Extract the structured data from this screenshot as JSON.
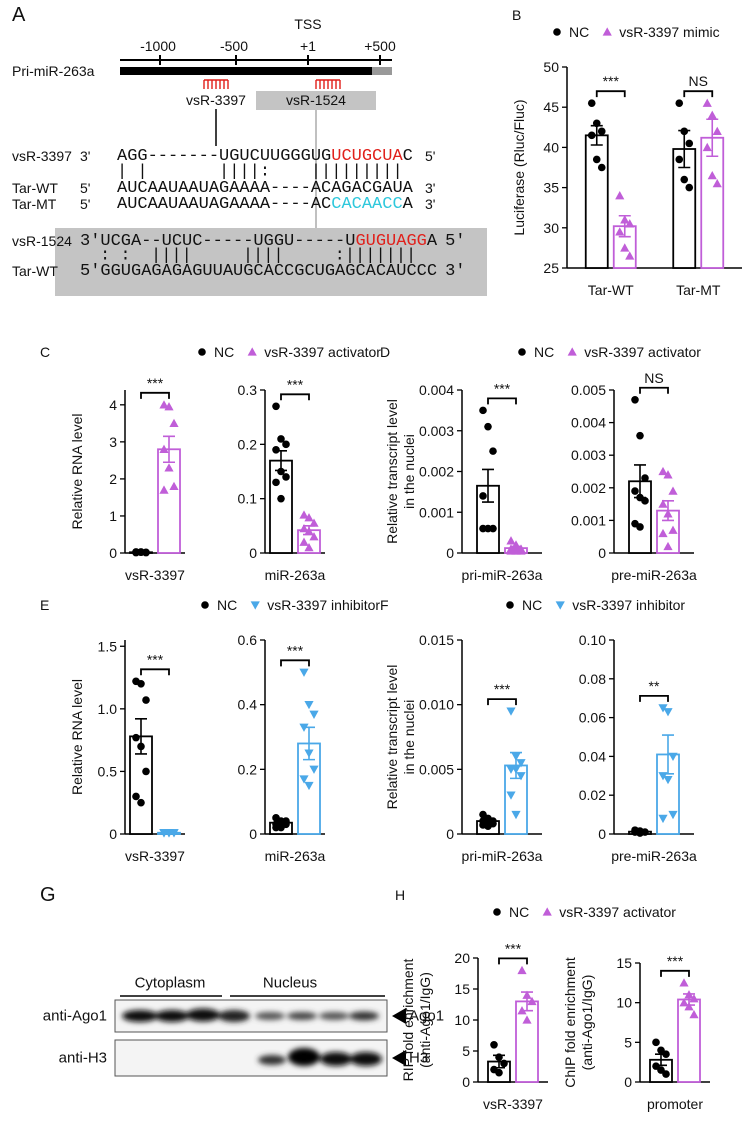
{
  "panel_a": {
    "label": "A",
    "tss": "TSS",
    "scale_ticks": [
      "-1000",
      "-500",
      "+1",
      "+500"
    ],
    "gene": "Pri-miR-263a",
    "site_1": "vsR-3397",
    "site_2": "vsR-1524",
    "alignment_1": [
      {
        "name": "vsR-3397",
        "left": "3'",
        "segments": [
          "AGG-------UGUCUUGGGUG",
          "UCUGCUA",
          "C"
        ],
        "right": "5'"
      },
      {
        "pairing": "| |       ||||:    |||||||||"
      },
      {
        "name": "Tar-WT",
        "left": "5'",
        "segments": [
          "AUCAAUAAUAGAAAA----ACAGACGAUA"
        ],
        "right": "3'"
      },
      {
        "name": "Tar-MT",
        "left": "5'",
        "segments": [
          "AUCAAUAAUAGAAAA----AC",
          "CACAACC",
          "A"
        ],
        "right": "3'"
      }
    ],
    "alignment_2": [
      {
        "name": "vsR-1524",
        "left": "3'",
        "segments": [
          "UCGA--UCUC-----UGGU-----U",
          "GUGUAGG",
          "A"
        ],
        "right": "5'"
      },
      {
        "pairing": ": :  ||||     ||||     :|||||||"
      },
      {
        "name": "Tar-WT",
        "left": "5'",
        "segments": [
          "GGUGAGAGAGUUAUGCACCGCUGAGCACAUCCC"
        ],
        "right": "3'"
      }
    ]
  },
  "panel_g": {
    "label": "G",
    "fractions": [
      "Cytoplasm",
      "Nucleus"
    ],
    "antibodies": [
      "anti-Ago1",
      "anti-H3"
    ],
    "bands": [
      "Ago1",
      "H3"
    ]
  },
  "chart_data": [
    {
      "type": "bar",
      "label": "B",
      "series": [
        {
          "name": "NC",
          "color": "#000000",
          "marker": "circle"
        },
        {
          "name": "vsR-3397 mimic",
          "color": "#c05ed8",
          "marker": "triangle-up"
        }
      ],
      "subplots": [
        {
          "ylabel": [
            "Luciferase (Rluc/Fluc)"
          ],
          "categories": [
            "Tar-WT",
            "Tar-MT"
          ],
          "ylim": [
            25,
            50
          ],
          "yticks": [
            25,
            30,
            35,
            40,
            45,
            50
          ],
          "values": [
            [
              41.5,
              39.8
            ],
            [
              30.2,
              41.2
            ]
          ],
          "errors": [
            [
              1.2,
              2.3
            ],
            [
              1.3,
              2.3
            ]
          ],
          "points": [
            [
              [
                45.5,
                43,
                42,
                41.5,
                38.5,
                37.5
              ],
              [
                45.5,
                42,
                40.5,
                38.5,
                36,
                35
              ]
            ],
            [
              [
                34,
                31,
                30.5,
                29.5,
                27.5,
                26.5
              ],
              [
                45.5,
                44,
                42,
                40,
                36.5,
                35.5
              ]
            ]
          ],
          "significance": [
            "***",
            "NS"
          ]
        }
      ]
    },
    {
      "type": "bar",
      "label": "C",
      "series": [
        {
          "name": "NC",
          "color": "#000000",
          "marker": "circle"
        },
        {
          "name": "vsR-3397 activator",
          "color": "#c05ed8",
          "marker": "triangle-up"
        }
      ],
      "subplots": [
        {
          "ylabel": [
            "Relative RNA level"
          ],
          "categories": [
            "vsR-3397"
          ],
          "ylim": [
            0,
            4.4
          ],
          "yticks": [
            0,
            1,
            2,
            3,
            4
          ],
          "values": [
            [
              0.02
            ],
            [
              2.8
            ]
          ],
          "errors": [
            [
              0.003
            ],
            [
              0.35
            ]
          ],
          "points": [
            [
              [
                0.03,
                0.03,
                0.02,
                0.02,
                0.02,
                0.01,
                0.01
              ]
            ],
            [
              [
                4.0,
                3.95,
                3.5,
                2.8,
                2.3,
                1.8,
                1.7
              ]
            ]
          ],
          "significance": [
            "***"
          ]
        },
        {
          "categories": [
            "miR-263a"
          ],
          "ylim": [
            0,
            0.3
          ],
          "yticks": [
            0,
            0.1,
            0.2,
            0.3
          ],
          "values": [
            [
              0.17
            ],
            [
              0.042
            ]
          ],
          "errors": [
            [
              0.018
            ],
            [
              0.008
            ]
          ],
          "points": [
            [
              [
                0.27,
                0.21,
                0.2,
                0.19,
                0.15,
                0.14,
                0.13,
                0.1
              ]
            ],
            [
              [
                0.07,
                0.065,
                0.055,
                0.045,
                0.04,
                0.03,
                0.02,
                0.01
              ]
            ]
          ],
          "significance": [
            "***"
          ]
        }
      ]
    },
    {
      "type": "bar",
      "label": "D",
      "series": [
        {
          "name": "NC",
          "color": "#000000",
          "marker": "circle"
        },
        {
          "name": "vsR-3397 activator",
          "color": "#c05ed8",
          "marker": "triangle-up"
        }
      ],
      "subplots": [
        {
          "ylabel": [
            "Relative transcript level",
            "in the nuclei"
          ],
          "categories": [
            "pri-miR-263a"
          ],
          "ylim": [
            0,
            0.004
          ],
          "yticks": [
            0,
            0.001,
            0.002,
            0.003,
            0.004
          ],
          "values": [
            [
              0.00165
            ],
            [
              0.00012
            ]
          ],
          "errors": [
            [
              0.0004
            ],
            [
              4e-05
            ]
          ],
          "points": [
            [
              [
                0.0035,
                0.0031,
                0.0025,
                0.0014,
                0.0006,
                0.0006,
                0.0006
              ]
            ],
            [
              [
                0.0003,
                0.0002,
                0.0001,
                0.0001,
                5e-05,
                5e-05,
                5e-05
              ]
            ]
          ],
          "significance": [
            "***"
          ]
        },
        {
          "categories": [
            "pre-miR-263a"
          ],
          "ylim": [
            0,
            0.005
          ],
          "yticks": [
            0,
            0.001,
            0.002,
            0.003,
            0.004,
            0.005
          ],
          "values": [
            [
              0.0022
            ],
            [
              0.0013
            ]
          ],
          "errors": [
            [
              0.0005
            ],
            [
              0.0003
            ]
          ],
          "points": [
            [
              [
                0.0047,
                0.0036,
                0.0023,
                0.0019,
                0.0017,
                0.0016,
                0.0009,
                0.0008
              ]
            ],
            [
              [
                0.0025,
                0.0024,
                0.0019,
                0.0015,
                0.0012,
                0.0007,
                0.0006,
                0.0002
              ]
            ]
          ],
          "significance": [
            "NS"
          ]
        }
      ]
    },
    {
      "type": "bar",
      "label": "E",
      "series": [
        {
          "name": "NC",
          "color": "#000000",
          "marker": "circle"
        },
        {
          "name": "vsR-3397 inhibitor",
          "color": "#4aa8e8",
          "marker": "triangle-down"
        }
      ],
      "subplots": [
        {
          "ylabel": [
            "Relative RNA level"
          ],
          "categories": [
            "vsR-3397"
          ],
          "ylim": [
            0,
            1.55
          ],
          "yticks": [
            0,
            0.5,
            {
              "value": 1,
              "label": "1.0"
            },
            1.5
          ],
          "values": [
            [
              0.78
            ],
            [
              0.01
            ]
          ],
          "errors": [
            [
              0.14
            ],
            [
              0.002
            ]
          ],
          "points": [
            [
              [
                1.22,
                1.2,
                1.07,
                0.77,
                0.7,
                0.5,
                0.3,
                0.25
              ]
            ],
            [
              [
                0.01,
                0.01,
                0.01,
                0.01,
                0.01,
                0.01,
                0.01,
                0.01
              ]
            ]
          ],
          "significance": [
            "***"
          ]
        },
        {
          "categories": [
            "miR-263a"
          ],
          "ylim": [
            0,
            0.6
          ],
          "yticks": [
            0,
            0.2,
            0.4,
            0.6
          ],
          "values": [
            [
              0.035
            ],
            [
              0.28
            ]
          ],
          "errors": [
            [
              0.004
            ],
            [
              0.05
            ]
          ],
          "points": [
            [
              [
                0.05,
                0.04,
                0.04,
                0.03,
                0.03,
                0.03,
                0.02,
                0.02
              ]
            ],
            [
              [
                0.5,
                0.4,
                0.37,
                0.33,
                0.25,
                0.2,
                0.17,
                0.15
              ]
            ]
          ],
          "significance": [
            "***"
          ]
        }
      ]
    },
    {
      "type": "bar",
      "label": "F",
      "series": [
        {
          "name": "NC",
          "color": "#000000",
          "marker": "circle"
        },
        {
          "name": "vsR-3397 inhibitor",
          "color": "#4aa8e8",
          "marker": "triangle-down"
        }
      ],
      "subplots": [
        {
          "ylabel": [
            "Relative transcript level",
            "in the nuclei"
          ],
          "categories": [
            "pri-miR-263a"
          ],
          "ylim": [
            0,
            0.015
          ],
          "yticks": [
            0,
            0.005,
            {
              "value": 0.01,
              "label": "0.010"
            },
            0.015
          ],
          "values": [
            [
              0.001
            ],
            [
              0.0053
            ]
          ],
          "errors": [
            [
              0.0001
            ],
            [
              0.001
            ]
          ],
          "points": [
            [
              [
                0.0015,
                0.0012,
                0.001,
                0.001,
                0.0009,
                0.0008,
                0.0007,
                0.0006
              ]
            ],
            [
              [
                0.0095,
                0.006,
                0.0055,
                0.005,
                0.005,
                0.0045,
                0.003,
                0.0015
              ]
            ]
          ],
          "significance": [
            "***"
          ]
        },
        {
          "categories": [
            "pre-miR-263a"
          ],
          "ylim": [
            0,
            0.1
          ],
          "yticks": [
            0,
            0.02,
            0.04,
            0.06,
            0.08,
            {
              "value": 0.1,
              "label": "0.10"
            }
          ],
          "values": [
            [
              0.0012
            ],
            [
              0.041
            ]
          ],
          "errors": [
            [
              0.0003
            ],
            [
              0.01
            ]
          ],
          "points": [
            [
              [
                0.002,
                0.0015,
                0.001,
                0.001,
                0.0005
              ]
            ],
            [
              [
                0.065,
                0.063,
                0.04,
                0.03,
                0.028,
                0.01,
                0.008
              ]
            ]
          ],
          "significance": [
            "**"
          ]
        }
      ]
    },
    {
      "type": "bar",
      "label": "H",
      "series": [
        {
          "name": "NC",
          "color": "#000000",
          "marker": "circle"
        },
        {
          "name": "vsR-3397 activator",
          "color": "#c05ed8",
          "marker": "triangle-up"
        }
      ],
      "subplots": [
        {
          "ylabel": [
            "RIP fold enrichment",
            "(anti-Ago1/IgG)"
          ],
          "categories": [
            "vsR-3397"
          ],
          "ylim": [
            0,
            20
          ],
          "yticks": [
            0,
            5,
            10,
            15,
            20
          ],
          "values": [
            [
              3.3
            ],
            [
              13
            ]
          ],
          "errors": [
            [
              1
            ],
            [
              1.5
            ]
          ],
          "points": [
            [
              [
                6,
                4,
                3,
                2,
                1.5
              ]
            ],
            [
              [
                18,
                14,
                13,
                11.5,
                10
              ]
            ]
          ],
          "significance": [
            "***"
          ]
        },
        {
          "ylabel": [
            "ChIP fold enrichment",
            "(anti-Ago1/IgG)"
          ],
          "categories": [
            "promoter"
          ],
          "ylim": [
            0,
            15
          ],
          "yticks": [
            0,
            5,
            10,
            15
          ],
          "values": [
            [
              2.8
            ],
            [
              10.4
            ]
          ],
          "errors": [
            [
              0.7
            ],
            [
              0.7
            ]
          ],
          "points": [
            [
              [
                5,
                4,
                3.5,
                2,
                1.5,
                1
              ]
            ],
            [
              [
                12.5,
                11,
                10.5,
                10,
                9.5,
                8.5
              ]
            ]
          ],
          "significance": [
            "***"
          ]
        }
      ]
    }
  ]
}
